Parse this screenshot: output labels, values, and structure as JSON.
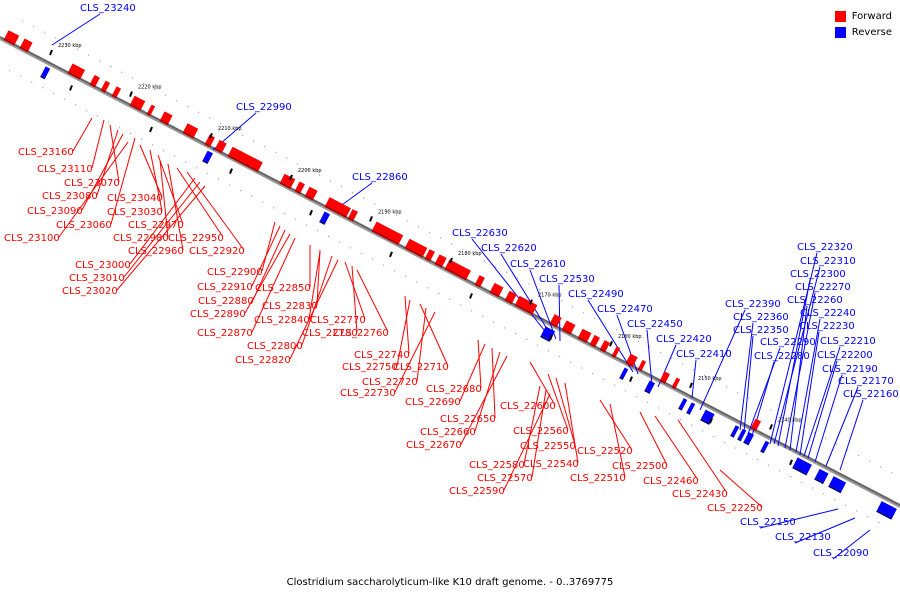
{
  "legend": {
    "forward_label": "Forward",
    "reverse_label": "Reverse",
    "forward_color": "#ff0000",
    "reverse_color": "#0000ff"
  },
  "caption": "Clostridium saccharolyticum-like K10 draft genome. - 0..3769775",
  "ticks": [
    "2230 kbp",
    "2220 kbp",
    "2210 kbp",
    "2200 kbp",
    "2190 kbp",
    "2180 kbp",
    "2170 kbp",
    "2160 kbp",
    "2150 kbp",
    "2140 kbp"
  ],
  "gene_labels_forward": [
    "CLS_23160",
    "CLS_23110",
    "CLS_23070",
    "CLS_23080",
    "CLS_23090",
    "CLS_23060",
    "CLS_23100",
    "CLS_23040",
    "CLS_23030",
    "CLS_22970",
    "CLS_22980",
    "CLS_22960",
    "CLS_22950",
    "CLS_22920",
    "CLS_23000",
    "CLS_23010",
    "CLS_23020",
    "CLS_22900",
    "CLS_22910",
    "CLS_22880",
    "CLS_22890",
    "CLS_22870",
    "CLS_22850",
    "CLS_22830",
    "CLS_22840",
    "CLS_22800",
    "CLS_22820",
    "CLS_22770",
    "CLS_22780",
    "CLS_22760",
    "CLS_22740",
    "CLS_22750",
    "CLS_22710",
    "CLS_22720",
    "CLS_22730",
    "CLS_22680",
    "CLS_22690",
    "CLS_22650",
    "CLS_22660",
    "CLS_22670",
    "CLS_22600",
    "CLS_22560",
    "CLS_22550",
    "CLS_22540",
    "CLS_22580",
    "CLS_22570",
    "CLS_22590",
    "CLS_22520",
    "CLS_22510",
    "CLS_22500",
    "CLS_22460",
    "CLS_22430",
    "CLS_22250"
  ],
  "gene_labels_reverse": [
    "CLS_23240",
    "CLS_22990",
    "CLS_22860",
    "CLS_22630",
    "CLS_22620",
    "CLS_22610",
    "CLS_22530",
    "CLS_22490",
    "CLS_22470",
    "CLS_22450",
    "CLS_22420",
    "CLS_22410",
    "CLS_22390",
    "CLS_22360",
    "CLS_22350",
    "CLS_22290",
    "CLS_22280",
    "CLS_22320",
    "CLS_22310",
    "CLS_22300",
    "CLS_22270",
    "CLS_22260",
    "CLS_22240",
    "CLS_22230",
    "CLS_22210",
    "CLS_22200",
    "CLS_22190",
    "CLS_22170",
    "CLS_22160",
    "CLS_22150",
    "CLS_22130",
    "CLS_22090"
  ]
}
